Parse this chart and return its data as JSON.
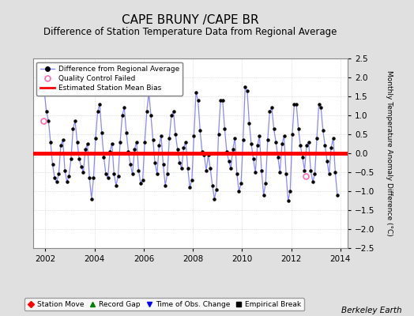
{
  "title": "CAPE BRUNY /CAPE BR",
  "subtitle": "Difference of Station Temperature Data from Regional Average",
  "ylabel": "Monthly Temperature Anomaly Difference (°C)",
  "xlim": [
    2001.5,
    2014.3
  ],
  "ylim": [
    -2.5,
    2.5
  ],
  "yticks": [
    -2.5,
    -2,
    -1.5,
    -1,
    -0.5,
    0,
    0.5,
    1,
    1.5,
    2,
    2.5
  ],
  "xticks": [
    2002,
    2004,
    2006,
    2008,
    2010,
    2012,
    2014
  ],
  "bias_value": 0.0,
  "line_color": "#8888FF",
  "bias_color": "#FF0000",
  "marker_color": "#000000",
  "qc_fail_color": "#FF69B4",
  "bg_color": "#E0E0E0",
  "plot_bg_color": "#FFFFFF",
  "watermark": "Berkeley Earth",
  "title_fontsize": 11,
  "subtitle_fontsize": 8.5,
  "watermark_fontsize": 7.5,
  "qc_fail_times": [
    2001.917
  ],
  "qc_fail_values": [
    0.85
  ],
  "qc_fail_times2": [
    2012.583
  ],
  "qc_fail_values2": [
    -0.6
  ],
  "data": {
    "times": [
      2001.958,
      2002.042,
      2002.125,
      2002.208,
      2002.292,
      2002.375,
      2002.458,
      2002.542,
      2002.625,
      2002.708,
      2002.792,
      2002.875,
      2002.958,
      2003.042,
      2003.125,
      2003.208,
      2003.292,
      2003.375,
      2003.458,
      2003.542,
      2003.625,
      2003.708,
      2003.792,
      2003.875,
      2003.958,
      2004.042,
      2004.125,
      2004.208,
      2004.292,
      2004.375,
      2004.458,
      2004.542,
      2004.625,
      2004.708,
      2004.792,
      2004.875,
      2004.958,
      2005.042,
      2005.125,
      2005.208,
      2005.292,
      2005.375,
      2005.458,
      2005.542,
      2005.625,
      2005.708,
      2005.792,
      2005.875,
      2005.958,
      2006.042,
      2006.125,
      2006.208,
      2006.292,
      2006.375,
      2006.458,
      2006.542,
      2006.625,
      2006.708,
      2006.792,
      2006.875,
      2006.958,
      2007.042,
      2007.125,
      2007.208,
      2007.292,
      2007.375,
      2007.458,
      2007.542,
      2007.625,
      2007.708,
      2007.792,
      2007.875,
      2007.958,
      2008.042,
      2008.125,
      2008.208,
      2008.292,
      2008.375,
      2008.458,
      2008.542,
      2008.625,
      2008.708,
      2008.792,
      2008.875,
      2008.958,
      2009.042,
      2009.125,
      2009.208,
      2009.292,
      2009.375,
      2009.458,
      2009.542,
      2009.625,
      2009.708,
      2009.792,
      2009.875,
      2009.958,
      2010.042,
      2010.125,
      2010.208,
      2010.292,
      2010.375,
      2010.458,
      2010.542,
      2010.625,
      2010.708,
      2010.792,
      2010.875,
      2010.958,
      2011.042,
      2011.125,
      2011.208,
      2011.292,
      2011.375,
      2011.458,
      2011.542,
      2011.625,
      2011.708,
      2011.792,
      2011.875,
      2011.958,
      2012.042,
      2012.125,
      2012.208,
      2012.292,
      2012.375,
      2012.458,
      2012.542,
      2012.625,
      2012.708,
      2012.792,
      2012.875,
      2012.958,
      2013.042,
      2013.125,
      2013.208,
      2013.292,
      2013.375,
      2013.458,
      2013.542,
      2013.625,
      2013.708,
      2013.792,
      2013.875
    ],
    "values": [
      1.6,
      1.1,
      0.85,
      0.3,
      -0.3,
      -0.65,
      -0.75,
      -0.55,
      0.2,
      0.35,
      -0.45,
      -0.75,
      -0.6,
      -0.15,
      0.65,
      0.85,
      0.3,
      -0.15,
      -0.35,
      -0.5,
      0.1,
      0.25,
      -0.65,
      -1.2,
      -0.65,
      0.4,
      1.1,
      1.3,
      0.55,
      -0.1,
      -0.55,
      -0.65,
      0.05,
      0.25,
      -0.55,
      -0.85,
      -0.6,
      0.3,
      1.0,
      1.2,
      0.55,
      0.05,
      -0.3,
      -0.55,
      0.1,
      0.3,
      -0.45,
      -0.8,
      -0.7,
      0.3,
      1.1,
      1.6,
      1.0,
      0.35,
      -0.25,
      -0.55,
      0.2,
      0.45,
      -0.3,
      -0.85,
      -0.55,
      0.4,
      1.0,
      1.1,
      0.5,
      0.1,
      -0.25,
      -0.4,
      0.15,
      0.3,
      -0.4,
      -0.9,
      -0.7,
      0.45,
      1.6,
      1.4,
      0.6,
      0.05,
      -0.05,
      -0.45,
      -0.05,
      -0.4,
      -0.85,
      -1.2,
      -0.95,
      0.5,
      1.4,
      1.4,
      0.65,
      0.05,
      -0.2,
      -0.4,
      0.1,
      0.4,
      -0.55,
      -1.0,
      -0.8,
      0.35,
      1.75,
      1.65,
      0.8,
      0.25,
      -0.15,
      -0.5,
      0.2,
      0.45,
      -0.45,
      -1.1,
      -0.8,
      0.35,
      1.1,
      1.2,
      0.65,
      0.3,
      -0.1,
      -0.5,
      0.25,
      0.45,
      -0.55,
      -1.25,
      -1.0,
      0.5,
      1.3,
      1.3,
      0.65,
      0.2,
      -0.1,
      -0.45,
      0.2,
      0.3,
      -0.45,
      -0.75,
      -0.55,
      0.4,
      1.3,
      1.2,
      0.6,
      0.2,
      -0.2,
      -0.55,
      0.15,
      0.4,
      -0.5,
      -1.1
    ]
  }
}
